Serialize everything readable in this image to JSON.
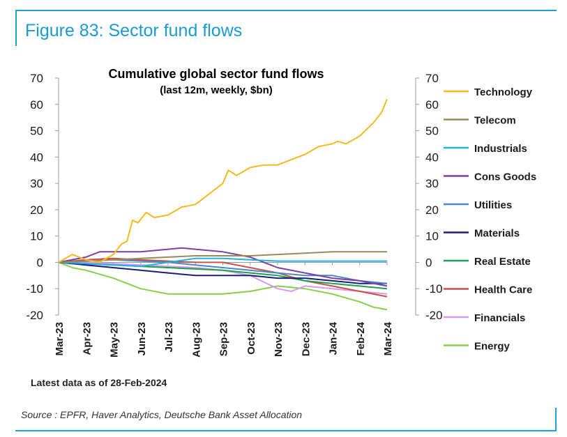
{
  "figure_title": "Figure 83: Sector fund flows",
  "latest_note": "Latest data as of 28-Feb-2024",
  "source": "Source : EPFR, Haver Analytics, Deutsche Bank Asset Allocation",
  "colors": {
    "frame": "#1aa3d9",
    "title": "#1a9ad6"
  },
  "chart_data": {
    "type": "line",
    "title": "Cumulative global sector fund flows",
    "subtitle": "(last 12m, weekly, $bn)",
    "xlabel": "",
    "ylabel": "",
    "ylim": [
      -20,
      70
    ],
    "yticks_left": [
      "70",
      "60",
      "50",
      "40",
      "30",
      "20",
      "10",
      "0",
      "-10",
      "-20"
    ],
    "yticks_right": [
      "70",
      "60",
      "50",
      "40",
      "30",
      "20",
      "10",
      "0",
      "-10",
      "-20"
    ],
    "x_ticks": [
      "Mar-23",
      "Apr-23",
      "May-23",
      "Jun-23",
      "Jul-23",
      "Aug-23",
      "Sep-23",
      "Oct-23",
      "Nov-23",
      "Dec-23",
      "Jan-24",
      "Feb-24",
      "Mar-24"
    ],
    "legend_position": "right",
    "series": [
      {
        "name": "Technology",
        "color": "#f5b921",
        "x": [
          0,
          0.5,
          1,
          1.5,
          2,
          2.3,
          2.5,
          2.7,
          2.9,
          3.2,
          3.5,
          4,
          4.5,
          5,
          5.5,
          6,
          6.2,
          6.5,
          7,
          7.5,
          8,
          8.5,
          9,
          9.5,
          10,
          10.2,
          10.5,
          11,
          11.5,
          11.8,
          12
        ],
        "values": [
          0,
          3,
          1,
          0,
          3,
          7,
          8,
          16,
          15,
          19,
          17,
          18,
          21,
          22,
          26,
          30,
          35,
          33,
          36,
          37,
          37,
          39,
          41,
          44,
          45,
          46,
          45,
          48,
          53,
          57,
          62
        ]
      },
      {
        "name": "Telecom",
        "color": "#9a8a5a",
        "x": [
          0,
          1,
          2,
          3,
          4,
          5,
          6,
          7,
          8,
          9,
          10,
          11,
          12
        ],
        "values": [
          0,
          0.5,
          1,
          1.5,
          2,
          2.5,
          2.5,
          2.5,
          3,
          3.5,
          4,
          4,
          4
        ]
      },
      {
        "name": "Industrials",
        "color": "#1fb3e0",
        "x": [
          0,
          1,
          2,
          3,
          4,
          5,
          6,
          7,
          8,
          9,
          10,
          11,
          12
        ],
        "values": [
          0,
          -0.5,
          -1,
          -1.5,
          0,
          1.5,
          1.5,
          1,
          0.5,
          0.5,
          0.5,
          0.5,
          0.5
        ]
      },
      {
        "name": "Cons Goods",
        "color": "#7b3fa6",
        "x": [
          0,
          1,
          1.5,
          2,
          3,
          4,
          4.5,
          5,
          6,
          7,
          8,
          9,
          10,
          11,
          12
        ],
        "values": [
          0,
          2,
          4,
          4,
          4,
          5,
          5.5,
          5,
          4,
          2,
          -2,
          -4,
          -6,
          -7,
          -9
        ]
      },
      {
        "name": "Utilities",
        "color": "#4a86c8",
        "x": [
          0,
          1,
          2,
          3,
          4,
          5,
          6,
          7,
          8,
          9,
          10,
          11,
          12
        ],
        "values": [
          0,
          0.5,
          1,
          0.5,
          0,
          -1,
          -2,
          -3,
          -4,
          -5,
          -5,
          -7,
          -8
        ]
      },
      {
        "name": "Materials",
        "color": "#1c1c7a",
        "x": [
          0,
          1,
          2,
          3,
          4,
          5,
          6,
          7,
          8,
          9,
          10,
          11,
          12
        ],
        "values": [
          0,
          -1,
          -2,
          -3,
          -4,
          -5,
          -5,
          -5,
          -6,
          -6,
          -7,
          -8,
          -8
        ]
      },
      {
        "name": "Real Estate",
        "color": "#1aa050",
        "x": [
          0,
          1,
          2,
          3,
          4,
          5,
          6,
          7,
          8,
          9,
          10,
          11,
          12
        ],
        "values": [
          0,
          -0.5,
          -1,
          -1.5,
          -2,
          -2.5,
          -3,
          -4,
          -5,
          -7,
          -8,
          -9,
          -10
        ]
      },
      {
        "name": "Health Care",
        "color": "#c8504a",
        "x": [
          0,
          1,
          2,
          3,
          4,
          5,
          6,
          7,
          8,
          9,
          10,
          11,
          12
        ],
        "values": [
          0,
          1,
          1.5,
          1,
          0.5,
          0,
          0,
          -2,
          -4,
          -7,
          -9,
          -11,
          -13
        ]
      },
      {
        "name": "Financials",
        "color": "#d39af0",
        "x": [
          0,
          1,
          2,
          3,
          4,
          5,
          6,
          7,
          8,
          8.5,
          9,
          10,
          11,
          12
        ],
        "values": [
          0,
          0,
          -0.5,
          -1,
          -1.5,
          -2,
          -3,
          -5,
          -10,
          -11,
          -9,
          -10,
          -11,
          -12
        ]
      },
      {
        "name": "Energy",
        "color": "#86cf4a",
        "x": [
          0,
          0.5,
          1,
          2,
          3,
          4,
          5,
          6,
          7,
          8,
          9,
          10,
          11,
          11.5,
          12
        ],
        "values": [
          0,
          -2,
          -3,
          -6,
          -10,
          -12,
          -12,
          -12,
          -11,
          -9,
          -10,
          -12,
          -15,
          -17,
          -18
        ]
      }
    ]
  }
}
